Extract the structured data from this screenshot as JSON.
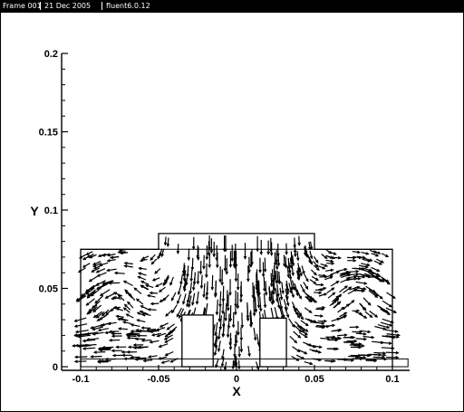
{
  "window": {
    "frame_label": "Frame 001",
    "date": "21 Dec 2005",
    "solver": "fluent6.0.12"
  },
  "chart_data": {
    "type": "vector-field",
    "title": "",
    "xlabel": "X",
    "ylabel": "Y",
    "xlim": [
      -0.1,
      0.1
    ],
    "ylim": [
      0,
      0.2
    ],
    "xticks": [
      {
        "value": -0.1,
        "label": "-0.1"
      },
      {
        "value": -0.05,
        "label": "-0.05"
      },
      {
        "value": 0,
        "label": "0"
      },
      {
        "value": 0.05,
        "label": "0.05"
      },
      {
        "value": 0.1,
        "label": "0.1"
      }
    ],
    "yticks": [
      {
        "value": 0,
        "label": "0"
      },
      {
        "value": 0.05,
        "label": "0.05"
      },
      {
        "value": 0.1,
        "label": "0.1"
      },
      {
        "value": 0.15,
        "label": "0.15"
      },
      {
        "value": 0.2,
        "label": "0.2"
      }
    ],
    "geometry": {
      "chamber": {
        "x": [
          -0.1,
          0.1
        ],
        "y": [
          0,
          0.075
        ]
      },
      "inlet": {
        "x": [
          -0.05,
          0.05
        ],
        "y": [
          0.075,
          0.085
        ]
      },
      "left_block": {
        "x": [
          -0.035,
          -0.015
        ],
        "y": [
          0,
          0.033
        ]
      },
      "right_block": {
        "x": [
          0.015,
          0.032
        ],
        "y": [
          0,
          0.031
        ]
      },
      "floor_outlet": {
        "x": [
          -0.1,
          0.11
        ],
        "y": [
          0,
          0.005
        ]
      }
    },
    "grid": false,
    "color": "#000000"
  }
}
